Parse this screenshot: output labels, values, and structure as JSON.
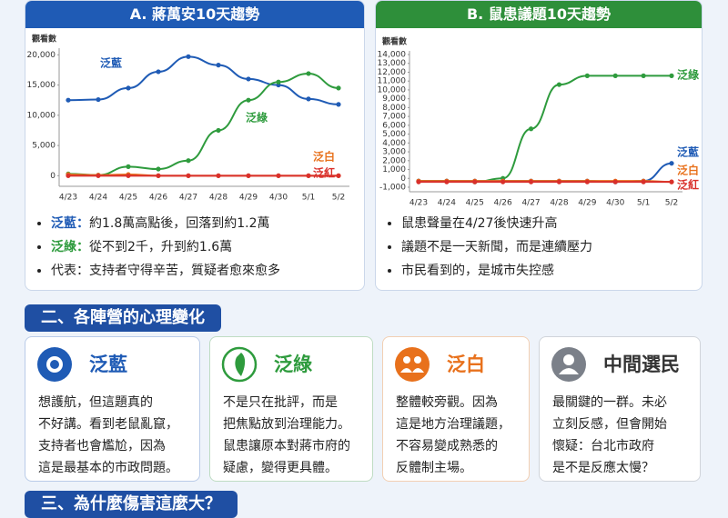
{
  "chart_data": [
    {
      "type": "line",
      "title": "A. 蔣萬安10天趨勢",
      "y_label": "觀看數",
      "categories": [
        "4/23",
        "4/24",
        "4/25",
        "4/26",
        "4/27",
        "4/28",
        "4/29",
        "4/30",
        "5/1",
        "5/2"
      ],
      "ylim": [
        -1000,
        20500
      ],
      "yticks": [
        0,
        {
          "value": 5000,
          "label": "5,000"
        },
        {
          "value": 10000,
          "label": "10,000"
        },
        {
          "value": 15000,
          "label": "15,000"
        },
        {
          "value": 20000,
          "label": "20,000"
        }
      ],
      "series": [
        {
          "name": "泛藍",
          "color": "#1f5bb5",
          "values": [
            12500,
            12600,
            14500,
            17200,
            19700,
            18300,
            16000,
            15000,
            12700,
            11800
          ]
        },
        {
          "name": "泛綠",
          "color": "#2e9b3d",
          "values": [
            300,
            100,
            1500,
            1100,
            2500,
            7500,
            12500,
            15500,
            16900,
            14500
          ]
        },
        {
          "name": "泛白",
          "color": "#e8711c",
          "values": [
            200,
            100,
            200,
            0,
            0,
            0,
            0,
            0,
            0,
            0
          ]
        },
        {
          "name": "泛紅",
          "color": "#d9302b",
          "values": [
            0,
            0,
            0,
            0,
            0,
            0,
            0,
            0,
            0,
            0
          ]
        }
      ]
    },
    {
      "type": "line",
      "title": "B. 鼠患議題10天趨勢",
      "y_label": "觀看數",
      "categories": [
        "4/23",
        "4/24",
        "4/25",
        "4/26",
        "4/27",
        "4/28",
        "4/29",
        "4/30",
        "5/1",
        "5/2"
      ],
      "ylim": [
        -1000,
        14000
      ],
      "yticks": [
        {
          "value": -1000,
          "label": "-1,000"
        },
        0,
        {
          "value": 1000,
          "label": "1,000"
        },
        {
          "value": 2000,
          "label": "2,000"
        },
        {
          "value": 3000,
          "label": "3,000"
        },
        {
          "value": 4000,
          "label": "4,000"
        },
        {
          "value": 5000,
          "label": "5,000"
        },
        {
          "value": 6000,
          "label": "6,000"
        },
        {
          "value": 7000,
          "label": "7,000"
        },
        {
          "value": 8000,
          "label": "8,000"
        },
        {
          "value": 9000,
          "label": "9,000"
        },
        {
          "value": 10000,
          "label": "10,000"
        },
        {
          "value": 11000,
          "label": "11,000"
        },
        {
          "value": 12000,
          "label": "12,000"
        },
        {
          "value": 13000,
          "label": "13,000"
        },
        {
          "value": 14000,
          "label": "14,000"
        }
      ],
      "series": [
        {
          "name": "泛綠",
          "color": "#2e9b3d",
          "values": [
            -300,
            -300,
            -400,
            0,
            5600,
            10600,
            11600,
            11600,
            11600,
            11600
          ]
        },
        {
          "name": "泛藍",
          "color": "#1f5bb5",
          "values": [
            -300,
            -300,
            -300,
            -300,
            -300,
            -300,
            -300,
            -400,
            -300,
            1700
          ]
        },
        {
          "name": "泛白",
          "color": "#e8711c",
          "values": [
            -300,
            -300,
            -300,
            -300,
            -300,
            -300,
            -300,
            -300,
            -300,
            -400
          ]
        },
        {
          "name": "泛紅",
          "color": "#d9302b",
          "values": [
            -400,
            -400,
            -400,
            -400,
            -400,
            -400,
            -400,
            -400,
            -400,
            -400
          ]
        }
      ]
    }
  ],
  "bullets": [
    [
      {
        "label": "泛藍：",
        "text": "約1.8萬高點後，回落到約1.2萬"
      },
      {
        "label": "泛綠：",
        "text": "從不到2千，升到約1.6萬"
      },
      {
        "label": "",
        "text": "代表：支持者守得辛苦，質疑者愈來愈多"
      }
    ],
    [
      {
        "label": "",
        "text": "鼠患聲量在4/27後快速升高"
      },
      {
        "label": "",
        "text": "議題不是一天新聞，而是連續壓力"
      },
      {
        "label": "",
        "text": "市民看到的，是城市失控感"
      }
    ]
  ],
  "section2": "二、各陣營的心理變化",
  "cards": [
    {
      "title": "泛藍",
      "lines": [
        "想護航，但這題真的",
        "不好講。看到老鼠亂竄，",
        "支持者也會尷尬，因為",
        "這是最基本的市政問題。"
      ]
    },
    {
      "title": "泛綠",
      "lines": [
        "不是只在批評，而是",
        "把焦點放到治理能力。",
        "鼠患讓原本對蔣市府的",
        "疑慮，變得更具體。"
      ]
    },
    {
      "title": "泛白",
      "lines": [
        "整體較旁觀。因為",
        "這是地方治理議題，",
        "不容易變成熟悉的",
        "反體制主場。"
      ]
    },
    {
      "title": "中間選民",
      "lines": [
        "最關鍵的一群。未必",
        "立刻反感，但會開始",
        "懷疑：台北市政府",
        "是不是反應太慢？"
      ]
    }
  ],
  "section3": "三、為什麼傷害這麼大？"
}
